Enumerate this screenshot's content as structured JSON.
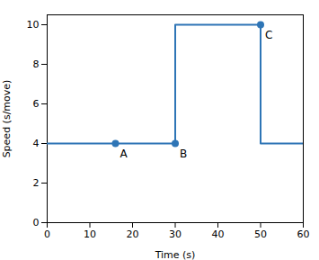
{
  "chart_data": {
    "type": "line",
    "xlabel": "Time (s)",
    "ylabel": "Speed (s/move)",
    "x": [
      0,
      30,
      30,
      50,
      50,
      60
    ],
    "values": [
      4,
      4,
      10,
      10,
      4,
      4
    ],
    "color": "#2e75b6",
    "xlim": [
      0,
      60
    ],
    "ylim": [
      0,
      10.5
    ],
    "xticks": [
      0,
      10,
      20,
      30,
      40,
      50,
      60
    ],
    "yticks": [
      0,
      2,
      4,
      6,
      8,
      10
    ],
    "grid": false,
    "annotations": [
      {
        "x": 16,
        "y": 4,
        "text": "A"
      },
      {
        "x": 30,
        "y": 4,
        "text": "B"
      },
      {
        "x": 50,
        "y": 10,
        "text": "C"
      }
    ]
  }
}
